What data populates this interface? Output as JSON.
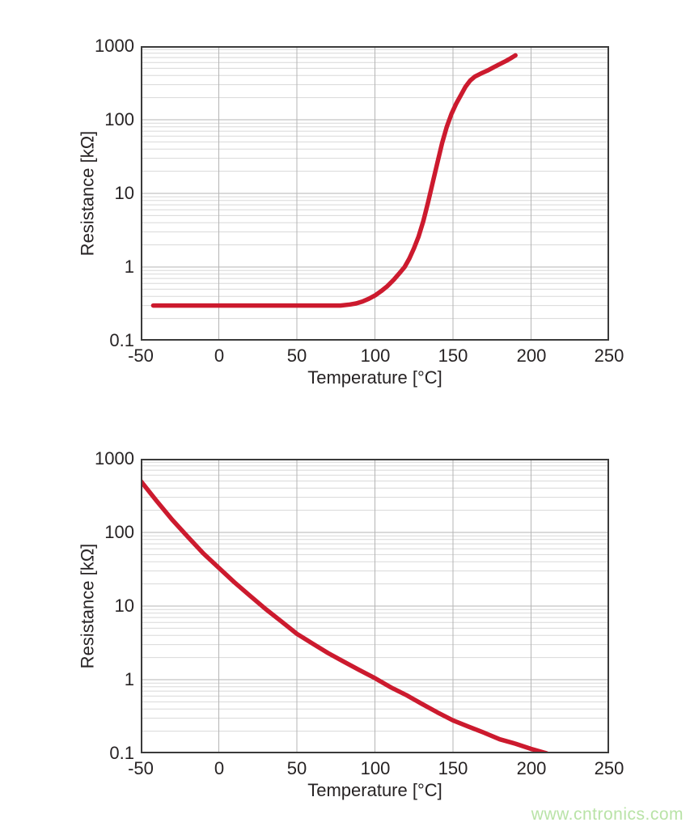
{
  "watermark": {
    "text": "www.cntronics.com",
    "color": "#b9e3a7"
  },
  "colors": {
    "curve": "#cc1a2e",
    "grid_major": "#b5b5b5",
    "grid_minor": "#d8d8d8",
    "frame": "#3b3b3b",
    "text": "#272324",
    "background": "#ffffff"
  },
  "chart_data": [
    {
      "type": "line",
      "title": "",
      "xlabel": "Temperature [°C]",
      "ylabel": "Resistance [kΩ]",
      "xlim": [
        -50,
        250
      ],
      "ylim": [
        0.1,
        1000
      ],
      "yscale": "log",
      "x_ticks": [
        -50,
        0,
        50,
        100,
        150,
        200,
        250
      ],
      "y_ticks": [
        1000,
        100,
        10,
        1,
        0.1
      ],
      "grid": "on",
      "legend": "none",
      "series": [
        {
          "points": [
            [
              -42,
              0.3
            ],
            [
              -30,
              0.3
            ],
            [
              -20,
              0.3
            ],
            [
              -10,
              0.3
            ],
            [
              0,
              0.3
            ],
            [
              10,
              0.3
            ],
            [
              20,
              0.3
            ],
            [
              30,
              0.3
            ],
            [
              40,
              0.3
            ],
            [
              50,
              0.3
            ],
            [
              60,
              0.3
            ],
            [
              70,
              0.3
            ],
            [
              78,
              0.3
            ],
            [
              84,
              0.31
            ],
            [
              88,
              0.32
            ],
            [
              92,
              0.34
            ],
            [
              96,
              0.37
            ],
            [
              100,
              0.41
            ],
            [
              104,
              0.47
            ],
            [
              108,
              0.55
            ],
            [
              112,
              0.67
            ],
            [
              116,
              0.84
            ],
            [
              119,
              1.0
            ],
            [
              122,
              1.3
            ],
            [
              125,
              1.8
            ],
            [
              128,
              2.6
            ],
            [
              131,
              4.2
            ],
            [
              134,
              7.5
            ],
            [
              137,
              14
            ],
            [
              140,
              26
            ],
            [
              143,
              48
            ],
            [
              146,
              80
            ],
            [
              149,
              120
            ],
            [
              152,
              165
            ],
            [
              155,
              215
            ],
            [
              158,
              280
            ],
            [
              161,
              340
            ],
            [
              164,
              385
            ],
            [
              168,
              425
            ],
            [
              172,
              465
            ],
            [
              176,
              515
            ],
            [
              180,
              570
            ],
            [
              184,
              630
            ],
            [
              187,
              685
            ],
            [
              190,
              750
            ]
          ]
        }
      ]
    },
    {
      "type": "line",
      "title": "",
      "xlabel": "Temperature [°C]",
      "ylabel": "Resistance [kΩ]",
      "xlim": [
        -50,
        250
      ],
      "ylim": [
        0.1,
        1000
      ],
      "yscale": "log",
      "x_ticks": [
        -50,
        0,
        50,
        100,
        150,
        200,
        250
      ],
      "y_ticks": [
        1000,
        100,
        10,
        1,
        0.1
      ],
      "grid": "on",
      "legend": "none",
      "series": [
        {
          "points": [
            [
              -50,
              500
            ],
            [
              -40,
              270
            ],
            [
              -30,
              150
            ],
            [
              -20,
              88
            ],
            [
              -10,
              52
            ],
            [
              0,
              33
            ],
            [
              10,
              21
            ],
            [
              20,
              13.8
            ],
            [
              30,
              9.1
            ],
            [
              40,
              6.2
            ],
            [
              50,
              4.2
            ],
            [
              60,
              3.1
            ],
            [
              70,
              2.3
            ],
            [
              80,
              1.76
            ],
            [
              90,
              1.35
            ],
            [
              100,
              1.05
            ],
            [
              110,
              0.79
            ],
            [
              120,
              0.62
            ],
            [
              130,
              0.47
            ],
            [
              140,
              0.36
            ],
            [
              150,
              0.28
            ],
            [
              160,
              0.23
            ],
            [
              170,
              0.19
            ],
            [
              180,
              0.155
            ],
            [
              190,
              0.135
            ],
            [
              200,
              0.115
            ],
            [
              210,
              0.1
            ]
          ]
        }
      ]
    }
  ]
}
